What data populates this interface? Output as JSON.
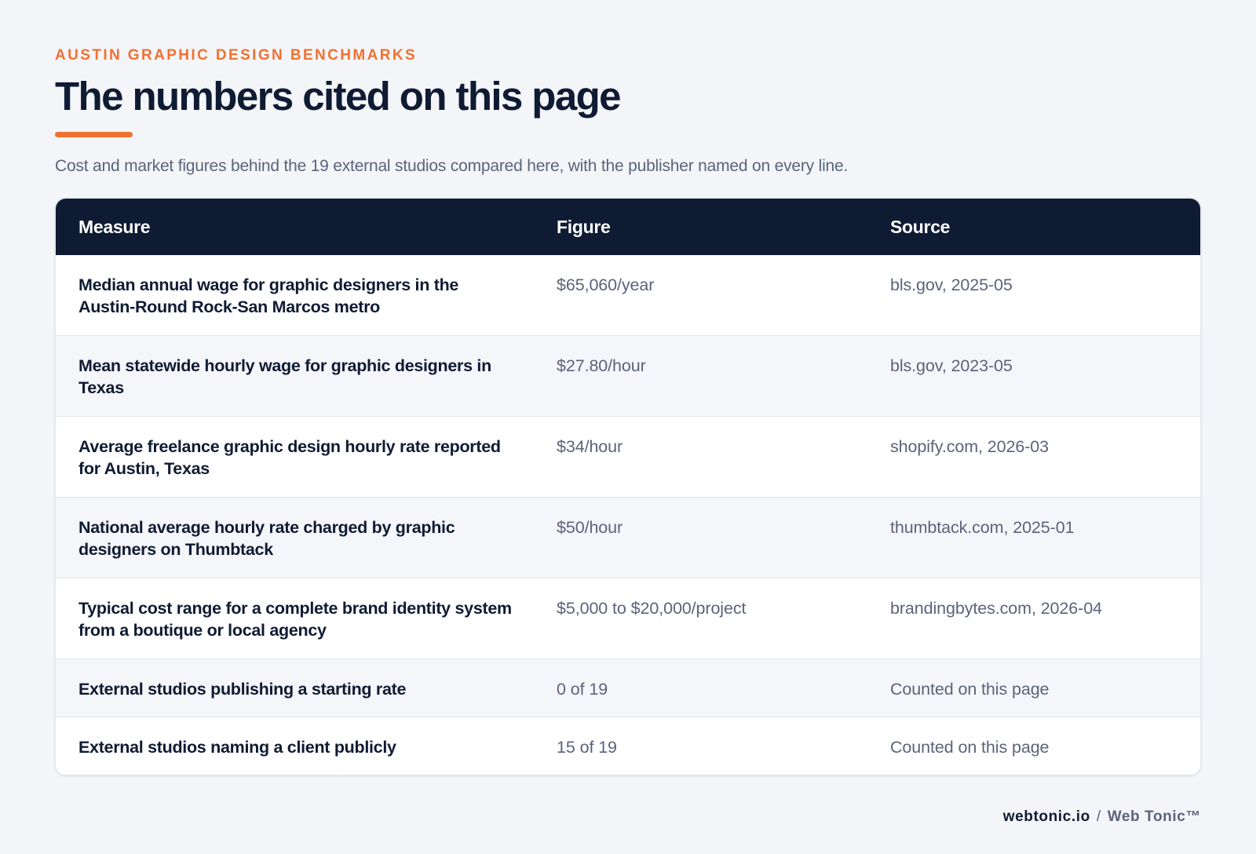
{
  "header": {
    "eyebrow": "AUSTIN GRAPHIC DESIGN BENCHMARKS",
    "title": "The numbers cited on this page",
    "subtitle": "Cost and market figures behind the 19 external studios compared here, with the publisher named on every line."
  },
  "table": {
    "columns": [
      "Measure",
      "Figure",
      "Source"
    ],
    "rows": [
      {
        "measure": "Median annual wage for graphic designers in the Austin-Round Rock-San Marcos metro",
        "figure": "$65,060/year",
        "source": "bls.gov, 2025-05"
      },
      {
        "measure": "Mean statewide hourly wage for graphic designers in Texas",
        "figure": "$27.80/hour",
        "source": "bls.gov, 2023-05"
      },
      {
        "measure": "Average freelance graphic design hourly rate reported for Austin, Texas",
        "figure": "$34/hour",
        "source": "shopify.com, 2026-03"
      },
      {
        "measure": "National average hourly rate charged by graphic designers on Thumbtack",
        "figure": "$50/hour",
        "source": "thumbtack.com, 2025-01"
      },
      {
        "measure": "Typical cost range for a complete brand identity system from a boutique or local agency",
        "figure": "$5,000 to $20,000/project",
        "source": "brandingbytes.com, 2026-04"
      },
      {
        "measure": "External studios publishing a starting rate",
        "figure": "0 of 19",
        "source": "Counted on this page"
      },
      {
        "measure": "External studios naming a client publicly",
        "figure": "15 of 19",
        "source": "Counted on this page"
      }
    ]
  },
  "footer": {
    "domain": "webtonic.io",
    "separator": "/",
    "brand": "Web Tonic™"
  },
  "colors": {
    "accent": "#f07132",
    "navy": "#0f1b33",
    "muted_text": "#59647a",
    "background": "#f3f5f8"
  }
}
